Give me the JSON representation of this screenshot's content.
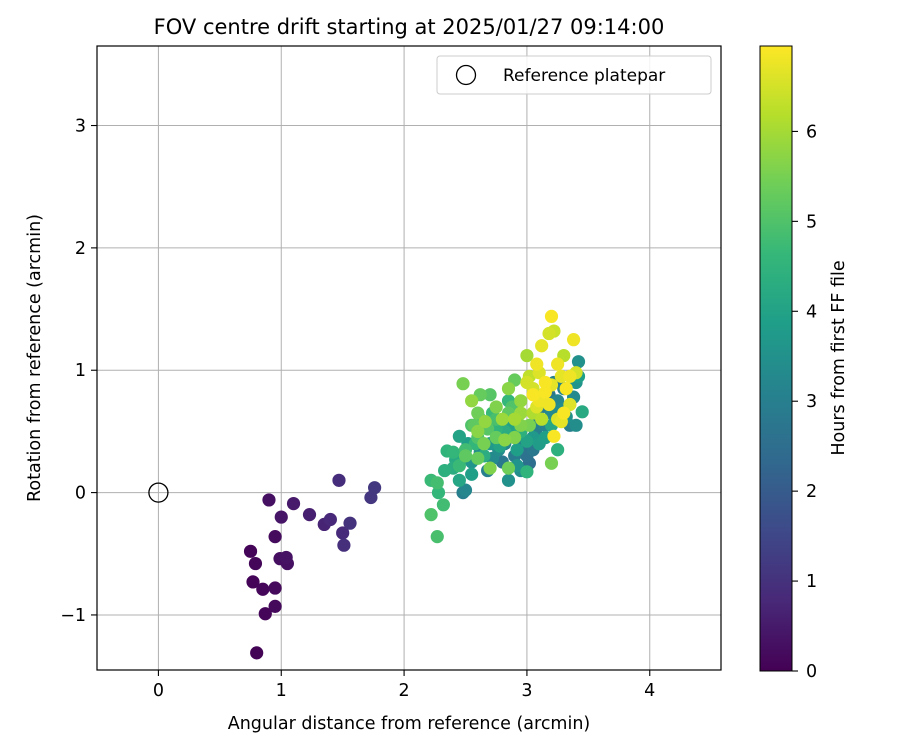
{
  "chart_data": {
    "type": "scatter",
    "title": "FOV centre drift starting at 2025/01/27 09:14:00",
    "xlabel": "Angular distance from reference (arcmin)",
    "ylabel": "Rotation from reference (arcmin)",
    "xlim": [
      -0.5,
      4.58
    ],
    "ylim": [
      -1.45,
      3.65
    ],
    "xticks": [
      0,
      1,
      2,
      3,
      4
    ],
    "xtick_labels": [
      "0",
      "1",
      "2",
      "3",
      "4"
    ],
    "yticks": [
      -1,
      0,
      1,
      2,
      3
    ],
    "ytick_labels": [
      "−1",
      "0",
      "1",
      "2",
      "3"
    ],
    "grid": true,
    "legend": {
      "placement": "top-right",
      "entries": [
        "Reference platepar"
      ]
    },
    "reference_point": {
      "name": "Reference platepar",
      "x": 0,
      "y": 0
    },
    "colorbar": {
      "label": "Hours from first FF file",
      "min": 0,
      "max": 6.95,
      "ticks": [
        0,
        1,
        2,
        3,
        4,
        5,
        6
      ],
      "tick_labels": [
        "0",
        "1",
        "2",
        "3",
        "4",
        "5",
        "6"
      ],
      "colormap": "viridis",
      "colors": [
        "#440154",
        "#482878",
        "#3e4989",
        "#31688e",
        "#26828e",
        "#1f9e89",
        "#35b779",
        "#6ece58",
        "#b5de2b",
        "#fde725"
      ]
    },
    "points": [
      [
        0.8,
        -1.31,
        0.05
      ],
      [
        0.87,
        -0.99,
        0.1
      ],
      [
        0.95,
        -0.93,
        0.15
      ],
      [
        0.77,
        -0.73,
        0.08
      ],
      [
        0.85,
        -0.79,
        0.12
      ],
      [
        0.95,
        -0.78,
        0.18
      ],
      [
        0.75,
        -0.48,
        0.06
      ],
      [
        0.79,
        -0.58,
        0.09
      ],
      [
        0.95,
        -0.36,
        0.2
      ],
      [
        0.9,
        -0.06,
        0.3
      ],
      [
        1.0,
        -0.2,
        0.4
      ],
      [
        0.99,
        -0.54,
        0.25
      ],
      [
        1.04,
        -0.53,
        0.35
      ],
      [
        1.05,
        -0.58,
        0.3
      ],
      [
        1.1,
        -0.09,
        0.5
      ],
      [
        1.23,
        -0.18,
        0.6
      ],
      [
        1.35,
        -0.26,
        0.7
      ],
      [
        1.4,
        -0.22,
        0.8
      ],
      [
        1.47,
        0.1,
        0.9
      ],
      [
        1.5,
        -0.33,
        0.85
      ],
      [
        1.51,
        -0.43,
        0.95
      ],
      [
        1.56,
        -0.25,
        1.0
      ],
      [
        1.73,
        -0.04,
        1.1
      ],
      [
        1.76,
        0.04,
        1.15
      ],
      [
        2.22,
        -0.18,
        5.0
      ],
      [
        2.27,
        -0.36,
        4.9
      ],
      [
        2.32,
        -0.1,
        4.8
      ],
      [
        2.22,
        0.1,
        4.7
      ],
      [
        2.27,
        0.08,
        4.85
      ],
      [
        2.28,
        0.0,
        4.6
      ],
      [
        2.33,
        0.18,
        4.4
      ],
      [
        2.35,
        0.34,
        4.5
      ],
      [
        2.4,
        0.2,
        4.3
      ],
      [
        2.42,
        0.27,
        4.2
      ],
      [
        2.45,
        0.1,
        4.1
      ],
      [
        2.48,
        0.0,
        3.0
      ],
      [
        2.5,
        0.02,
        3.2
      ],
      [
        2.45,
        0.46,
        4.0
      ],
      [
        2.5,
        0.3,
        3.8
      ],
      [
        2.52,
        0.4,
        3.9
      ],
      [
        2.55,
        0.25,
        3.6
      ],
      [
        2.57,
        0.55,
        5.2
      ],
      [
        2.6,
        0.45,
        5.0
      ],
      [
        2.62,
        0.33,
        3.4
      ],
      [
        2.65,
        0.3,
        3.5
      ],
      [
        2.68,
        0.18,
        3.0
      ],
      [
        2.7,
        0.4,
        3.7
      ],
      [
        2.72,
        0.28,
        3.3
      ],
      [
        2.75,
        0.52,
        4.5
      ],
      [
        2.77,
        0.35,
        3.4
      ],
      [
        2.8,
        0.25,
        2.8
      ],
      [
        2.82,
        0.4,
        3.2
      ],
      [
        2.85,
        0.1,
        3.5
      ],
      [
        2.87,
        0.55,
        4.0
      ],
      [
        2.9,
        0.3,
        2.9
      ],
      [
        2.92,
        0.22,
        3.6
      ],
      [
        2.95,
        0.18,
        3.4
      ],
      [
        2.97,
        0.4,
        2.7
      ],
      [
        3.0,
        0.3,
        2.6
      ],
      [
        3.02,
        0.24,
        2.5
      ],
      [
        3.05,
        0.35,
        2.8
      ],
      [
        3.07,
        0.5,
        3.0
      ],
      [
        3.1,
        0.6,
        3.2
      ],
      [
        3.12,
        0.7,
        2.9
      ],
      [
        3.15,
        0.55,
        3.1
      ],
      [
        3.18,
        0.8,
        2.8
      ],
      [
        3.2,
        0.65,
        3.3
      ],
      [
        3.22,
        0.9,
        3.0
      ],
      [
        3.25,
        0.75,
        3.2
      ],
      [
        3.28,
        0.68,
        3.4
      ],
      [
        3.3,
        0.85,
        3.1
      ],
      [
        3.32,
        0.62,
        3.5
      ],
      [
        3.35,
        0.55,
        3.0
      ],
      [
        3.38,
        0.78,
        3.3
      ],
      [
        3.4,
        0.9,
        3.6
      ],
      [
        3.42,
        1.07,
        3.5
      ],
      [
        3.45,
        0.66,
        4.2
      ],
      [
        3.25,
        0.35,
        4.4
      ],
      [
        3.2,
        0.24,
        5.5
      ],
      [
        3.0,
        0.17,
        4.5
      ],
      [
        2.62,
        0.8,
        5.3
      ],
      [
        2.48,
        0.89,
        5.5
      ],
      [
        2.55,
        0.75,
        5.8
      ],
      [
        2.6,
        0.65,
        5.4
      ],
      [
        2.7,
        0.8,
        5.1
      ],
      [
        2.75,
        0.7,
        5.6
      ],
      [
        2.8,
        0.6,
        5.9
      ],
      [
        2.85,
        0.85,
        5.7
      ],
      [
        2.9,
        0.92,
        5.3
      ],
      [
        2.95,
        0.75,
        5.8
      ],
      [
        3.0,
        1.12,
        6.0
      ],
      [
        3.02,
        0.95,
        6.3
      ],
      [
        3.05,
        0.85,
        6.5
      ],
      [
        3.08,
        1.05,
        6.8
      ],
      [
        3.1,
        0.98,
        6.6
      ],
      [
        3.12,
        1.2,
        6.7
      ],
      [
        3.15,
        0.9,
        6.9
      ],
      [
        3.18,
        1.3,
        6.5
      ],
      [
        3.2,
        1.44,
        6.9
      ],
      [
        3.22,
        1.32,
        6.4
      ],
      [
        3.25,
        1.05,
        6.8
      ],
      [
        3.28,
        0.95,
        6.7
      ],
      [
        3.3,
        1.12,
        6.2
      ],
      [
        3.32,
        0.85,
        6.9
      ],
      [
        3.35,
        0.72,
        6.6
      ],
      [
        3.38,
        1.25,
        6.8
      ],
      [
        3.4,
        0.98,
        6.5
      ],
      [
        3.05,
        0.8,
        6.9
      ],
      [
        3.1,
        0.75,
        6.8
      ],
      [
        3.15,
        0.82,
        6.9
      ],
      [
        3.2,
        0.88,
        6.7
      ],
      [
        3.25,
        0.6,
        6.6
      ],
      [
        3.3,
        0.65,
        6.9
      ],
      [
        3.35,
        0.95,
        6.8
      ],
      [
        3.0,
        0.9,
        6.5
      ],
      [
        3.08,
        0.7,
        6.6
      ],
      [
        3.18,
        0.72,
        6.8
      ],
      [
        3.22,
        0.46,
        6.9
      ],
      [
        3.28,
        0.58,
        6.7
      ],
      [
        2.85,
        0.2,
        5.4
      ],
      [
        2.7,
        0.2,
        5.6
      ],
      [
        2.6,
        0.5,
        5.7
      ],
      [
        2.65,
        0.4,
        5.5
      ],
      [
        2.75,
        0.45,
        5.3
      ],
      [
        2.95,
        0.65,
        5.9
      ],
      [
        2.9,
        0.45,
        5.6
      ],
      [
        2.85,
        0.65,
        5.2
      ],
      [
        2.95,
        0.55,
        5.6
      ],
      [
        3.05,
        0.65,
        6.1
      ],
      [
        2.55,
        0.55,
        5.0
      ],
      [
        2.5,
        0.35,
        4.8
      ],
      [
        2.45,
        0.22,
        4.7
      ],
      [
        2.4,
        0.33,
        4.6
      ],
      [
        2.55,
        0.15,
        3.9
      ],
      [
        2.65,
        0.3,
        4.3
      ],
      [
        2.75,
        0.6,
        4.9
      ],
      [
        2.85,
        0.75,
        4.6
      ],
      [
        2.95,
        0.5,
        4.4
      ],
      [
        3.0,
        0.42,
        4.0
      ],
      [
        3.05,
        0.45,
        3.7
      ],
      [
        3.1,
        0.4,
        3.8
      ],
      [
        3.15,
        0.45,
        3.9
      ],
      [
        3.2,
        0.55,
        4.1
      ],
      [
        3.4,
        0.55,
        3.4
      ],
      [
        3.42,
        0.95,
        3.9
      ],
      [
        2.62,
        0.6,
        4.5
      ],
      [
        2.72,
        0.65,
        4.7
      ],
      [
        2.82,
        0.5,
        4.3
      ],
      [
        2.92,
        0.35,
        3.9
      ],
      [
        2.88,
        0.7,
        5.0
      ],
      [
        2.58,
        0.4,
        4.6
      ],
      [
        2.68,
        0.52,
        5.1
      ],
      [
        2.78,
        0.38,
        4.0
      ],
      [
        2.5,
        0.3,
        5.2
      ],
      [
        2.6,
        0.28,
        5.3
      ],
      [
        2.66,
        0.58,
        5.8
      ],
      [
        2.82,
        0.43,
        5.7
      ],
      [
        2.9,
        0.6,
        6.0
      ],
      [
        3.12,
        0.6,
        6.2
      ],
      [
        3.02,
        0.55,
        5.5
      ],
      [
        2.78,
        0.58,
        4.2
      ]
    ]
  }
}
